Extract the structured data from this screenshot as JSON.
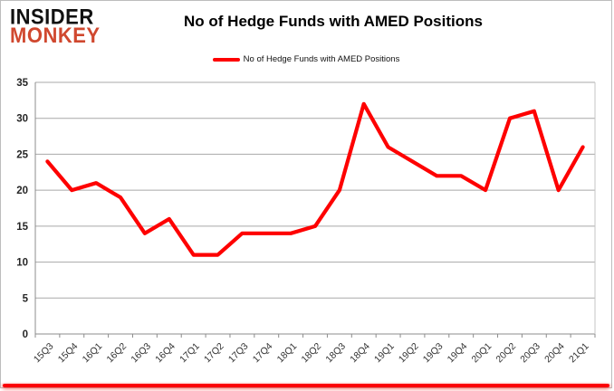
{
  "logo": {
    "line1": "INSIDER",
    "line2": "MONKEY"
  },
  "header": {
    "title": "No of Hedge Funds with AMED Positions"
  },
  "legend": {
    "label": "No of Hedge Funds with AMED Positions"
  },
  "colors": {
    "line": "#fe0000",
    "logo_monkey": "#d0482f",
    "grid": "#a8a8a8",
    "axis": "#8c8c8c",
    "bottom_bar": "#fb0007"
  },
  "chart_data": {
    "type": "line",
    "title": "No of Hedge Funds with AMED Positions",
    "series_name": "No of Hedge Funds with AMED Positions",
    "categories": [
      "15Q3",
      "15Q4",
      "16Q1",
      "16Q2",
      "16Q3",
      "16Q4",
      "17Q1",
      "17Q2",
      "17Q3",
      "17Q4",
      "18Q1",
      "18Q2",
      "18Q3",
      "18Q4",
      "19Q1",
      "19Q2",
      "19Q3",
      "19Q4",
      "20Q1",
      "20Q2",
      "20Q3",
      "20Q4",
      "21Q1"
    ],
    "values": [
      24,
      20,
      21,
      19,
      14,
      16,
      11,
      11,
      14,
      14,
      14,
      15,
      20,
      32,
      26,
      24,
      22,
      22,
      20,
      30,
      31,
      20,
      26
    ],
    "xlabel": "",
    "ylabel": "",
    "ylim": [
      0,
      35
    ],
    "ytick_interval": 5,
    "grid": true,
    "legend_position": "top",
    "line_color": "#fe0000"
  }
}
